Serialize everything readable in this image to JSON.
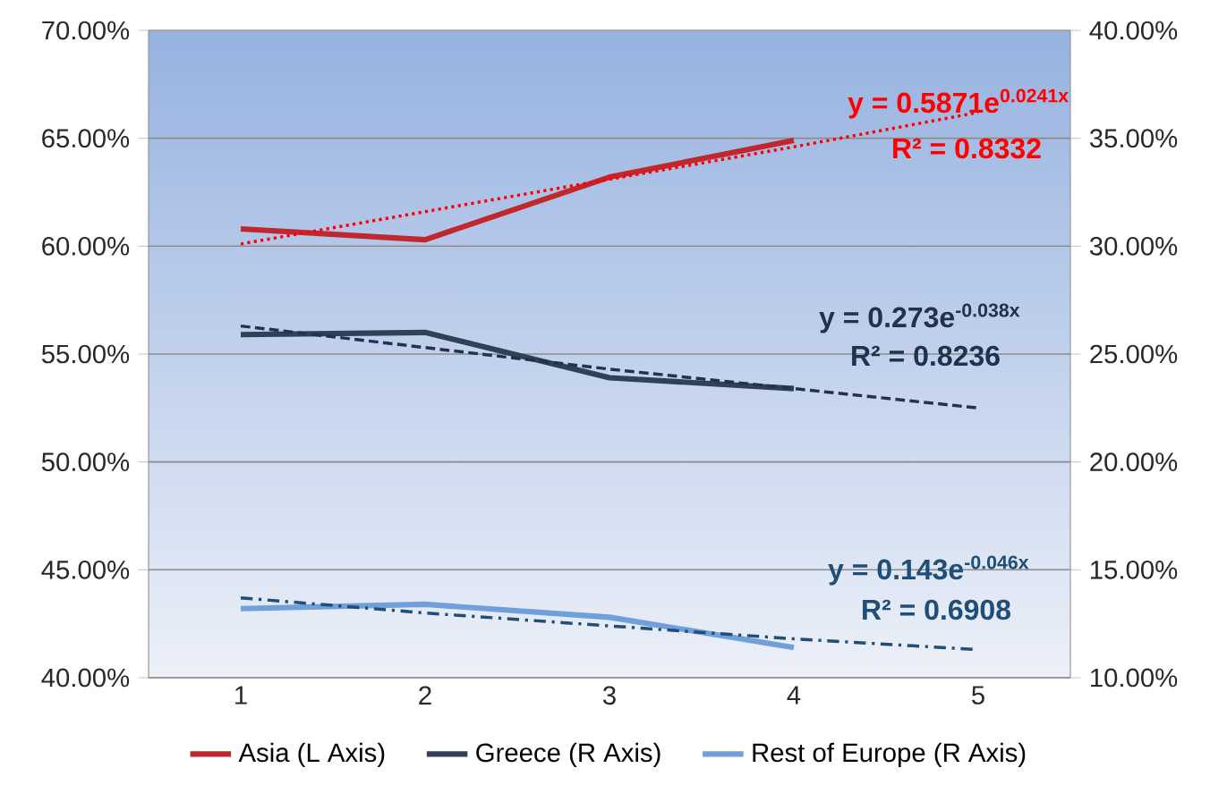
{
  "chart_data": {
    "type": "line",
    "categories": [
      "1",
      "2",
      "3",
      "4",
      "5"
    ],
    "series": [
      {
        "name": "Asia (L Axis)",
        "color": "#c0282d",
        "values": [
          60.8,
          60.3,
          63.2,
          64.9,
          null
        ]
      },
      {
        "name": "Greece (R Axis)",
        "color": "#2f4057",
        "axis": "y2",
        "values": [
          25.9,
          26.0,
          23.9,
          23.4,
          null
        ]
      },
      {
        "name": "Rest of Europe (R Axis)",
        "color": "#6fa0dc",
        "axis": "y2",
        "values": [
          13.2,
          13.4,
          12.8,
          11.4,
          null
        ]
      },
      {
        "type": "line",
        "color": "#ff0000",
        "line_style": "dotted",
        "values": [
          60.1,
          61.6,
          63.1,
          64.6,
          66.2
        ]
      },
      {
        "type": "line",
        "color": "#1f3350",
        "line_style": "dashed",
        "axis": "y2",
        "values": [
          26.3,
          25.3,
          24.3,
          23.4,
          22.5
        ]
      },
      {
        "type": "line",
        "color": "#1f4e79",
        "line_style": "dashdot",
        "axis": "y2",
        "values": [
          13.7,
          13.0,
          12.4,
          11.8,
          11.3
        ]
      }
    ],
    "ylim": [
      40,
      70
    ],
    "yticks": [
      {
        "value": 40,
        "label": "40.00%"
      },
      {
        "value": 45,
        "label": "45.00%"
      },
      {
        "value": 50,
        "label": "50.00%"
      },
      {
        "value": 55,
        "label": "55.00%"
      },
      {
        "value": 60,
        "label": "60.00%"
      },
      {
        "value": 65,
        "label": "65.00%"
      },
      {
        "value": 70,
        "label": "70.00%"
      }
    ],
    "y2lim": [
      10,
      40
    ],
    "y2ticks": [
      {
        "value": 10,
        "label": "10.00%"
      },
      {
        "value": 15,
        "label": "15.00%"
      },
      {
        "value": 20,
        "label": "20.00%"
      },
      {
        "value": 25,
        "label": "25.00%"
      },
      {
        "value": 30,
        "label": "30.00%"
      },
      {
        "value": 35,
        "label": "35.00%"
      },
      {
        "value": 40,
        "label": "40.00%"
      }
    ],
    "grid": "y",
    "legend": "bottom",
    "marker": "none",
    "annotations": [
      "y = 0.5871e$^{0.0241x}$",
      "R² = 0.8332",
      "y = 0.273e$^{-0.038x}$",
      "R² = 0.8236",
      "y = 0.143e$^{-0.046x}$",
      "R² = 0.6908"
    ]
  }
}
